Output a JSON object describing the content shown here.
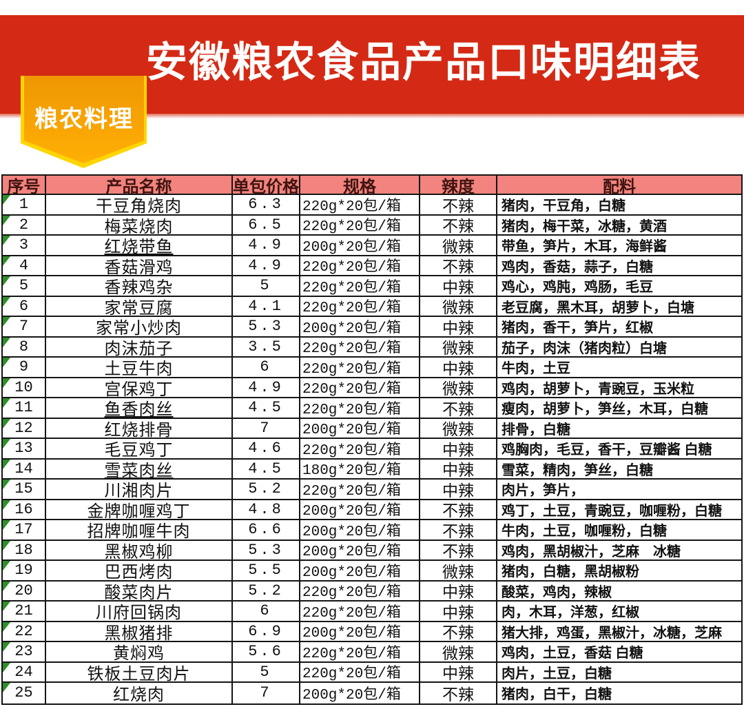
{
  "page": {
    "title": "安徽粮农食品产品口味明细表",
    "badge_label": "粮农料理"
  },
  "colors": {
    "banner_red": "#d42a15",
    "header_pink": "#f2837e",
    "header_text": "#3f1410",
    "border_black": "#141414",
    "badge_border_yellow": "#ffd503",
    "badge_orange_top": "#ef9703",
    "badge_orange_bottom": "#ffaf05",
    "triangle_green": "#2f8f2b"
  },
  "table": {
    "headers": [
      "序号",
      "产品名称",
      "单包价格",
      "规格",
      "辣度",
      "配料"
    ],
    "rows": [
      {
        "no": "1",
        "name": "干豆角烧肉",
        "underline": false,
        "price": "6.3",
        "spec": "220g*20包/箱",
        "spicy": "不辣",
        "ingredients": "猪肉，干豆角，白糖"
      },
      {
        "no": "2",
        "name": "梅菜烧肉",
        "underline": false,
        "price": "6.5",
        "spec": "220g*20包/箱",
        "spicy": "不辣",
        "ingredients": "猪肉，梅干菜，冰糖，黄酒"
      },
      {
        "no": "3",
        "name": "红烧带鱼",
        "underline": true,
        "price": "4.9",
        "spec": "200g*20包/箱",
        "spicy": "微辣",
        "ingredients": "带鱼，笋片，木耳，海鲜酱"
      },
      {
        "no": "4",
        "name": "香菇滑鸡",
        "underline": false,
        "price": "4.9",
        "spec": "220g*20包/箱",
        "spicy": "不辣",
        "ingredients": "鸡肉，香菇，蒜子，白糖"
      },
      {
        "no": "5",
        "name": "香辣鸡杂",
        "underline": false,
        "price": "5",
        "spec": "220g*20包/箱",
        "spicy": "中辣",
        "ingredients": "鸡心，鸡肫，鸡肠，毛豆"
      },
      {
        "no": "6",
        "name": "家常豆腐",
        "underline": false,
        "price": "4.1",
        "spec": "220g*20包/箱",
        "spicy": "微辣",
        "ingredients": "老豆腐，黑木耳，胡萝卜，白塘"
      },
      {
        "no": "7",
        "name": "家常小炒肉",
        "underline": false,
        "price": "5.3",
        "spec": "200g*20包/箱",
        "spicy": "中辣",
        "ingredients": "猪肉，香干，笋片，红椒"
      },
      {
        "no": "8",
        "name": "肉沫茄子",
        "underline": false,
        "price": "3.5",
        "spec": "220g*20包/箱",
        "spicy": "微辣",
        "ingredients": "茄子，肉沫（猪肉粒）白塘"
      },
      {
        "no": "9",
        "name": "土豆牛肉",
        "underline": false,
        "price": "6",
        "spec": "220g*20包/箱",
        "spicy": "中辣",
        "ingredients": "牛肉，土豆"
      },
      {
        "no": "10",
        "name": "宫保鸡丁",
        "underline": false,
        "price": "4.9",
        "spec": "220g*20包/箱",
        "spicy": "微辣",
        "ingredients": "鸡肉，胡萝卜，青豌豆，玉米粒"
      },
      {
        "no": "11",
        "name": "鱼香肉丝",
        "underline": true,
        "price": "4.5",
        "spec": "220g*20包/箱",
        "spicy": "不辣",
        "ingredients": "瘦肉，胡萝卜，笋丝，木耳，白糖"
      },
      {
        "no": "12",
        "name": "红烧排骨",
        "underline": false,
        "price": "7",
        "spec": "200g*20包/箱",
        "spicy": "微辣",
        "ingredients": "排骨，白糖"
      },
      {
        "no": "13",
        "name": "毛豆鸡丁",
        "underline": false,
        "price": "4.6",
        "spec": "220g*20包/箱",
        "spicy": "中辣",
        "ingredients": "鸡胸肉，毛豆，香干，豆瓣酱 白糖"
      },
      {
        "no": "14",
        "name": "雪菜肉丝",
        "underline": true,
        "price": "4.5",
        "spec": "180g*20包/箱",
        "spicy": "中辣",
        "ingredients": "雪菜，精肉，笋丝，白糖"
      },
      {
        "no": "15",
        "name": "川湘肉片",
        "underline": false,
        "price": "5.2",
        "spec": "220g*20包/箱",
        "spicy": "中辣",
        "ingredients": "肉片，笋片，"
      },
      {
        "no": "16",
        "name": "金牌咖喱鸡丁",
        "underline": false,
        "price": "4.8",
        "spec": "200g*20包/箱",
        "spicy": "不辣",
        "ingredients": "鸡丁，土豆，青豌豆，咖喱粉，白糖"
      },
      {
        "no": "17",
        "name": "招牌咖喱牛肉",
        "underline": false,
        "price": "6.6",
        "spec": "200g*20包/箱",
        "spicy": "不辣",
        "ingredients": "牛肉，土豆，咖喱粉，白糖"
      },
      {
        "no": "18",
        "name": "黑椒鸡柳",
        "underline": false,
        "price": "5.3",
        "spec": "200g*20包/箱",
        "spicy": "不辣",
        "ingredients": "鸡肉，黑胡椒汁，芝麻　冰糖"
      },
      {
        "no": "19",
        "name": "巴西烤肉",
        "underline": false,
        "price": "5.5",
        "spec": "200g*20包/箱",
        "spicy": "微辣",
        "ingredients": "猪肉，白糖，黑胡椒粉"
      },
      {
        "no": "20",
        "name": "酸菜肉片",
        "underline": false,
        "price": "5.2",
        "spec": "220g*20包/箱",
        "spicy": "中辣",
        "ingredients": "酸菜，鸡肉，辣椒"
      },
      {
        "no": "21",
        "name": "川府回锅肉",
        "underline": false,
        "price": "6",
        "spec": "220g*20包/箱",
        "spicy": "中辣",
        "ingredients": "肉，木耳，洋葱，红椒"
      },
      {
        "no": "22",
        "name": "黑椒猪排",
        "underline": false,
        "price": "6.9",
        "spec": "200g*20包/箱",
        "spicy": "不辣",
        "ingredients": "猪大排，鸡蛋，黑椒汁，冰糖，芝麻"
      },
      {
        "no": "23",
        "name": "黄焖鸡",
        "underline": false,
        "price": "5.6",
        "spec": "220g*20包/箱",
        "spicy": "微辣",
        "ingredients": "鸡肉，土豆，香菇 白糖"
      },
      {
        "no": "24",
        "name": "铁板土豆肉片",
        "underline": false,
        "price": "5",
        "spec": "220g*20包/箱",
        "spicy": "中辣",
        "ingredients": "肉片，土豆，白糖"
      },
      {
        "no": "25",
        "name": "红烧肉",
        "underline": false,
        "price": "7",
        "spec": "200g*20包/箱",
        "spicy": "不辣",
        "ingredients": "猪肉，白干，白糖"
      }
    ]
  }
}
